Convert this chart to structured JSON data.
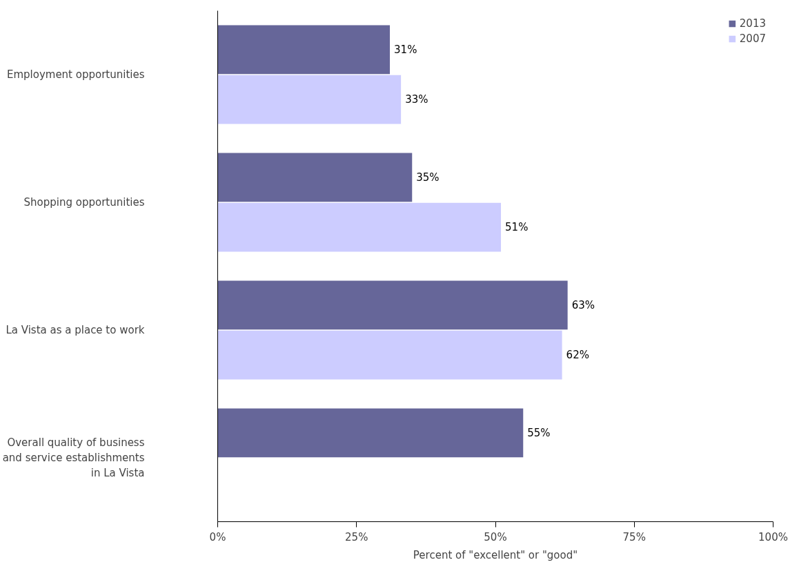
{
  "chart_data": {
    "type": "bar",
    "orientation": "horizontal",
    "xlabel": "Percent of \"excellent\" or \"good\"",
    "categories": [
      "Employment opportunities",
      "Shopping opportunities",
      "La Vista as a place to work",
      "Overall quality of business and service establishments in La Vista"
    ],
    "series": [
      {
        "name": "2013",
        "color": "#666699",
        "values": [
          31,
          35,
          63,
          55
        ],
        "value_labels": [
          "31%",
          "35%",
          "63%",
          "55%"
        ]
      },
      {
        "name": "2007",
        "color": "#ccccff",
        "values": [
          33,
          51,
          62,
          null
        ],
        "value_labels": [
          "33%",
          "51%",
          "62%",
          null
        ]
      }
    ],
    "xlim": [
      0,
      100
    ],
    "xticks": [
      {
        "value": 0,
        "label": "0%"
      },
      {
        "value": 25,
        "label": "25%"
      },
      {
        "value": 50,
        "label": "50%"
      },
      {
        "value": 75,
        "label": "75%"
      },
      {
        "value": 100,
        "label": "100%"
      }
    ],
    "grid": false,
    "legend": "top right"
  }
}
